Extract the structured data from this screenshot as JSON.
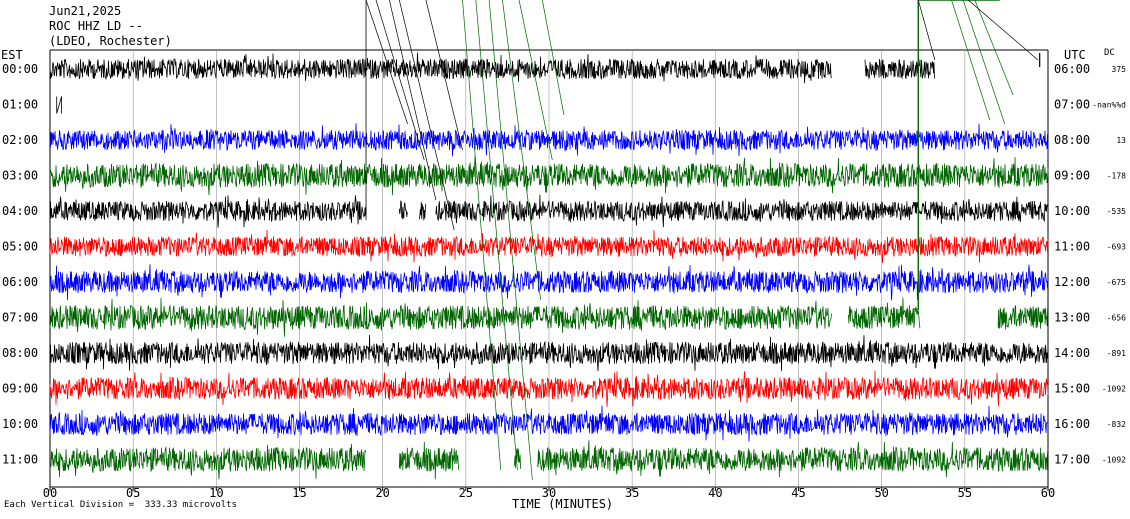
{
  "header": {
    "date": "Jun21,2025",
    "station": "ROC HHZ LD --",
    "network": "(LDEO, Rochester)"
  },
  "left_zone": "EST",
  "right_zone": "UTC",
  "dc_label": "DC",
  "footer_note": "Each Vertical Division =  333.33 microvolts",
  "chart_data": {
    "type": "line",
    "title": "",
    "xlabel": "TIME (MINUTES)",
    "ylabel": "",
    "xlim": [
      0,
      60
    ],
    "x_ticks": [
      "00",
      "05",
      "10",
      "15",
      "20",
      "25",
      "30",
      "35",
      "40",
      "45",
      "50",
      "55",
      "60"
    ],
    "grid": true,
    "vertical_division": "333.33 microvolts",
    "rows": [
      {
        "est": "00:00",
        "utc": "06:00",
        "dc": "375",
        "color": "#000000",
        "amp": 10,
        "data_min": [
          [
            0,
            47
          ],
          [
            49,
            53.2
          ]
        ],
        "spikes": [
          59.5
        ]
      },
      {
        "est": "01:00",
        "utc": "07:00",
        "dc": "-nan%%d",
        "color": "#000000",
        "amp": 0,
        "data_min": [
          [
            0.4,
            0.7
          ]
        ],
        "spikes": []
      },
      {
        "est": "02:00",
        "utc": "08:00",
        "dc": "13",
        "color": "#0000ff",
        "amp": 10,
        "data_min": [
          [
            0,
            60
          ]
        ],
        "spikes": []
      },
      {
        "est": "03:00",
        "utc": "09:00",
        "dc": "-178",
        "color": "#006600",
        "amp": 12,
        "data_min": [
          [
            0,
            60
          ]
        ],
        "spikes": []
      },
      {
        "est": "04:00",
        "utc": "10:00",
        "dc": "-535",
        "color": "#000000",
        "amp": 10,
        "data_min": [
          [
            0,
            19
          ],
          [
            21,
            21.5
          ],
          [
            22.2,
            22.6
          ],
          [
            23.2,
            60
          ]
        ],
        "spikes": []
      },
      {
        "est": "05:00",
        "utc": "11:00",
        "dc": "-693",
        "color": "#ff0000",
        "amp": 10,
        "data_min": [
          [
            0,
            60
          ]
        ],
        "spikes": []
      },
      {
        "est": "06:00",
        "utc": "12:00",
        "dc": "-675",
        "color": "#0000ff",
        "amp": 11,
        "data_min": [
          [
            0,
            60
          ]
        ],
        "spikes": []
      },
      {
        "est": "07:00",
        "utc": "13:00",
        "dc": "-656",
        "color": "#006600",
        "amp": 12,
        "data_min": [
          [
            0,
            47
          ],
          [
            48,
            52.3
          ],
          [
            57,
            60
          ]
        ],
        "spikes": []
      },
      {
        "est": "08:00",
        "utc": "14:00",
        "dc": "-891",
        "color": "#000000",
        "amp": 11,
        "data_min": [
          [
            0,
            60
          ]
        ],
        "spikes": []
      },
      {
        "est": "09:00",
        "utc": "15:00",
        "dc": "-1092",
        "color": "#ff0000",
        "amp": 11,
        "data_min": [
          [
            0,
            60
          ]
        ],
        "spikes": []
      },
      {
        "est": "10:00",
        "utc": "16:00",
        "dc": "-832",
        "color": "#0000ff",
        "amp": 11,
        "data_min": [
          [
            0,
            60
          ]
        ],
        "spikes": []
      },
      {
        "est": "11:00",
        "utc": "17:00",
        "dc": "-1092",
        "color": "#006600",
        "amp": 12,
        "data_min": [
          [
            0,
            19
          ],
          [
            21,
            24.6
          ],
          [
            27.9,
            28.3
          ],
          [
            29.3,
            60
          ]
        ],
        "spikes": []
      }
    ]
  }
}
